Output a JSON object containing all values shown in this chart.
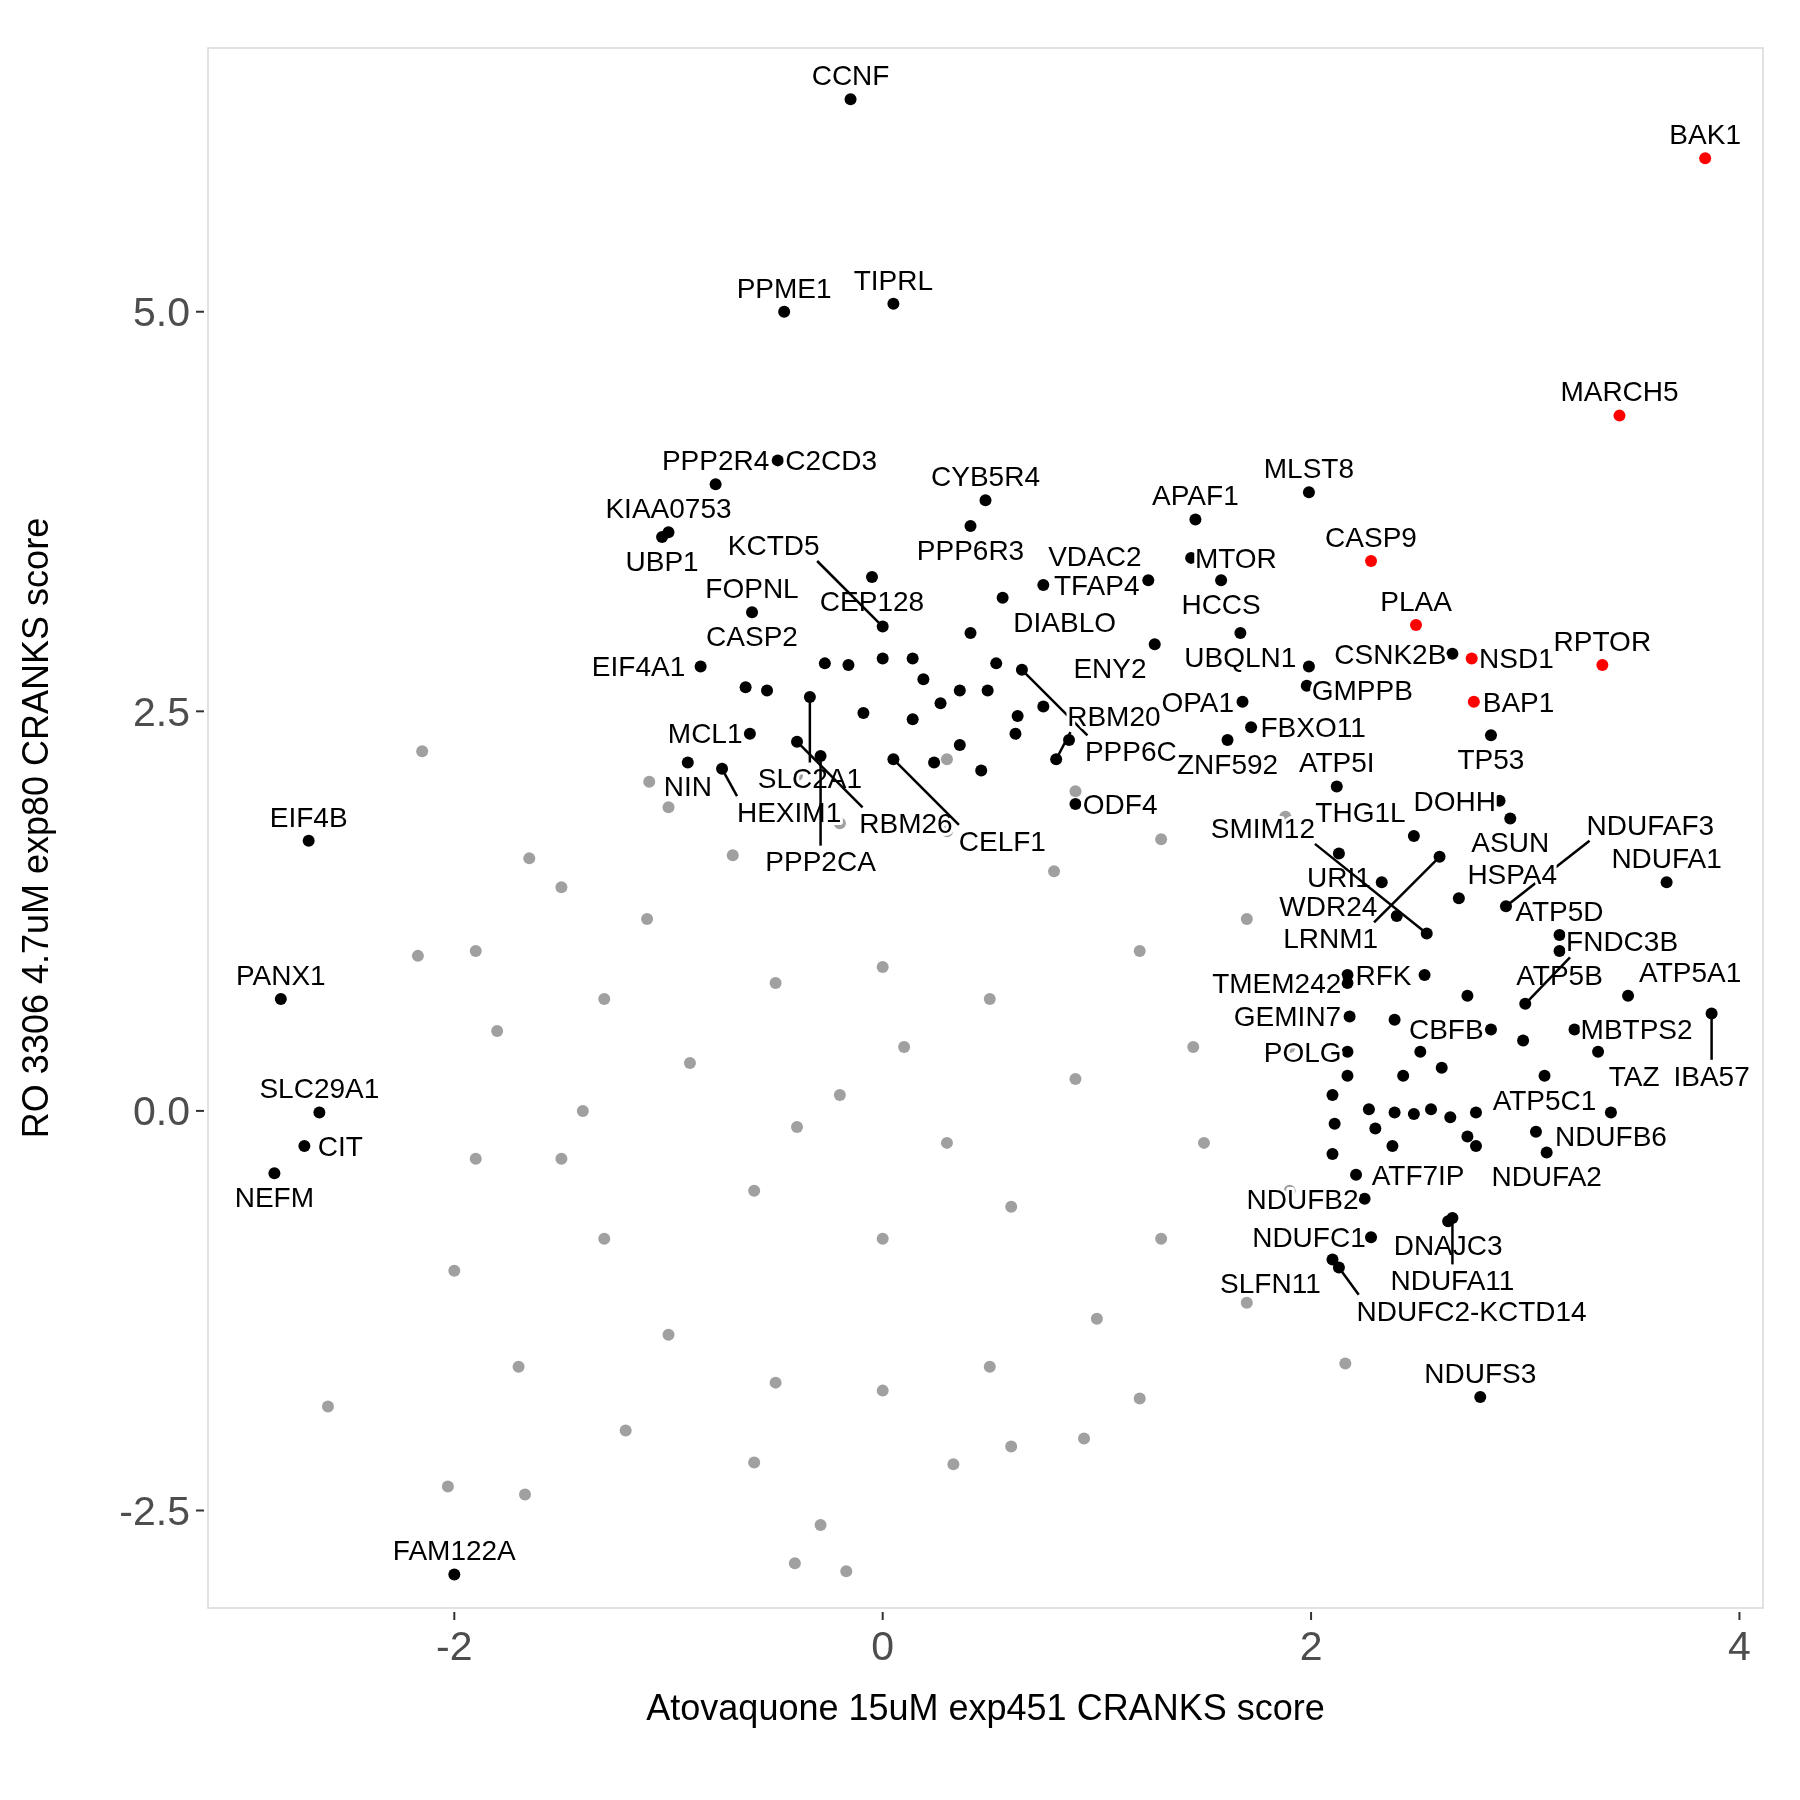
{
  "chart_data": {
    "type": "scatter",
    "xlabel": "Atovaquone 15uM exp451 CRANKS score",
    "ylabel": "RO 3306 4.7uM exp80 CRANKS score",
    "xlim": [
      -3.15,
      4.11
    ],
    "ylim": [
      -3.11,
      6.65
    ],
    "xticks": [
      {
        "value": -2,
        "label": "-2"
      },
      {
        "value": 0,
        "label": "0"
      },
      {
        "value": 2,
        "label": "2"
      },
      {
        "value": 4,
        "label": "4"
      }
    ],
    "yticks": [
      {
        "value": -2.5,
        "label": "-2.5"
      },
      {
        "value": 0,
        "label": "0.0"
      },
      {
        "value": 2.5,
        "label": "2.5"
      },
      {
        "value": 5,
        "label": "5.0"
      }
    ],
    "grid": false,
    "marker": "circle",
    "series": [
      {
        "color": "#a0a0a0",
        "x": [
          -1.4,
          -1.3,
          -1.1,
          -0.7,
          -0.2,
          0.3,
          0.8,
          1.2,
          1.45,
          1.5,
          1.3,
          1.0,
          0.5,
          0,
          -0.5,
          -1.0,
          -1.3,
          -1.5,
          -0.9,
          -0.5,
          0,
          0.5,
          0.9,
          0.6,
          0,
          -0.6,
          -0.2,
          0.3,
          0.1,
          -0.4,
          -1.8,
          -1.9,
          -2.0,
          -1.7,
          -1.2,
          -0.6,
          0.6,
          1.2,
          1.7,
          1.9,
          1.9,
          1.7,
          1.3,
          0.9,
          0.3,
          -0.4,
          -1.0,
          -1.5,
          -1.9,
          -2.15,
          -1.65,
          -2.17,
          -2.59,
          -2.03,
          -1.67,
          -0.29,
          -0.41,
          -0.17,
          0.33,
          0.94,
          2.16,
          1.88,
          -1.09
        ],
        "values": [
          0,
          0.7,
          1.2,
          1.6,
          1.8,
          1.75,
          1.5,
          1.0,
          0.4,
          -0.2,
          -0.8,
          -1.3,
          -1.6,
          -1.75,
          -1.7,
          -1.4,
          -0.8,
          -0.3,
          0.3,
          0.8,
          0.9,
          0.7,
          0.2,
          -0.6,
          -0.8,
          -0.5,
          0.1,
          -0.2,
          0.4,
          -0.1,
          0.5,
          -0.3,
          -1.0,
          -1.6,
          -2.0,
          -2.2,
          -2.1,
          -1.8,
          -1.2,
          -0.5,
          0.4,
          1.2,
          1.7,
          2.0,
          2.2,
          2.1,
          1.9,
          1.4,
          1.0,
          2.25,
          1.58,
          0.97,
          -1.85,
          -2.35,
          -2.4,
          -2.59,
          -2.83,
          -2.88,
          -2.21,
          -2.05,
          -1.58,
          1.84,
          2.06
        ]
      },
      {
        "color": "#000000",
        "x": [
          -0.15,
          0.05,
          -0.46,
          -0.78,
          -0.49,
          0.48,
          -1.03,
          -1.0,
          1.46,
          1.44,
          1.99,
          1.58,
          0.41,
          -0.05,
          0.75,
          -0.61,
          0.56,
          1.24,
          1.67,
          2.66,
          1.99,
          1.27,
          0,
          -0.85,
          0.65,
          1.68,
          1.72,
          -0.34,
          -0.62,
          2.84,
          1.61,
          0.81,
          -0.91,
          -0.75,
          -0.4,
          -0.29,
          0.05,
          2.12,
          2.88,
          2.93,
          3.16,
          3.66,
          0.9,
          2.48,
          2.6,
          2.13,
          2.91,
          2.69,
          2.33,
          3.16,
          2.54,
          2.17,
          2.17,
          3.48,
          3.0,
          2.84,
          2.18,
          2.17,
          3.23,
          3.87,
          3.09,
          3.34,
          3.4,
          3.1,
          2.21,
          2.25,
          2.64,
          2.66,
          2.28,
          2.1,
          2.13,
          2.79,
          -2.68,
          -2.81,
          -2.63,
          -2.7,
          -2.84,
          -2.0,
          2.39,
          2.51,
          2.43,
          2.61,
          2.1,
          2.27,
          2.39,
          2.56,
          2.65,
          2.77,
          2.11,
          2.3,
          2.38,
          2.48,
          2.73,
          2.77,
          3.05,
          2.99,
          2.73,
          2.53,
          2.4,
          2.17,
          2.1,
          -0.27,
          -0.16,
          0.14,
          0.19,
          0,
          -0.09,
          0.36,
          0.27,
          0.14,
          0.24,
          0.46,
          0.36,
          0.49,
          0.63,
          0.62,
          0.75,
          0.87,
          -0.54,
          -0.64,
          0.53,
          0.41,
          1.98
        ],
        "values": [
          6.33,
          5.05,
          5.0,
          3.92,
          4.07,
          3.82,
          3.59,
          3.62,
          3.7,
          3.46,
          3.87,
          3.32,
          3.66,
          3.34,
          3.29,
          3.12,
          3.21,
          3.32,
          2.99,
          2.86,
          2.78,
          2.92,
          3.03,
          2.78,
          2.76,
          2.56,
          2.4,
          2.59,
          2.36,
          2.35,
          2.32,
          2.2,
          2.18,
          2.14,
          2.31,
          2.22,
          2.2,
          2.03,
          1.94,
          1.83,
          1.1,
          1.43,
          1.92,
          1.72,
          1.59,
          1.61,
          1.28,
          1.33,
          1.43,
          1.0,
          1.11,
          0.85,
          0.8,
          0.72,
          0.67,
          0.51,
          0.59,
          0.37,
          0.51,
          0.61,
          0.22,
          0.37,
          -0.01,
          -0.26,
          -0.4,
          -0.55,
          -0.69,
          -0.67,
          -0.79,
          -0.93,
          -0.98,
          -1.79,
          1.69,
          0.7,
          -0.01,
          -0.22,
          -0.39,
          -2.9,
          0.57,
          0.37,
          0.22,
          0.27,
          0.1,
          0.01,
          -0.01,
          0.01,
          -0.04,
          -0.01,
          -0.08,
          -0.11,
          -0.22,
          -0.02,
          -0.16,
          -0.22,
          -0.13,
          0.44,
          0.72,
          0.85,
          1.22,
          0.22,
          -0.27,
          2.8,
          2.79,
          2.83,
          2.7,
          2.83,
          2.49,
          2.63,
          2.55,
          2.45,
          2.18,
          2.13,
          2.29,
          2.63,
          2.47,
          2.36,
          2.53,
          2.32,
          2.63,
          2.65,
          2.8,
          2.99,
          2.66
        ]
      },
      {
        "color": "#ff0000",
        "x": [
          3.84,
          3.44,
          2.28,
          2.49,
          2.75,
          3.36,
          2.76
        ],
        "values": [
          5.96,
          4.35,
          3.44,
          3.04,
          2.83,
          2.79,
          2.56
        ]
      }
    ],
    "annotations": [
      {
        "text": "BAK1",
        "x": 3.84,
        "y": 5.96
      },
      {
        "text": "MARCH5",
        "x": 3.44,
        "y": 4.35
      },
      {
        "text": "CASP9",
        "x": 2.28,
        "y": 3.44
      },
      {
        "text": "PLAA",
        "x": 2.49,
        "y": 3.04
      },
      {
        "text": "NSD1",
        "x": 2.75,
        "y": 2.83
      },
      {
        "text": "RPTOR",
        "x": 3.36,
        "y": 2.79
      },
      {
        "text": "BAP1",
        "x": 2.76,
        "y": 2.56
      },
      {
        "text": "CCNF",
        "x": -0.15,
        "y": 6.33
      },
      {
        "text": "TIPRL",
        "x": 0.05,
        "y": 5.05
      },
      {
        "text": "PPME1",
        "x": -0.46,
        "y": 5.0
      },
      {
        "text": "PPP2R4",
        "x": -0.78,
        "y": 3.92
      },
      {
        "text": "C2CD3",
        "x": -0.49,
        "y": 4.07
      },
      {
        "text": "CYB5R4",
        "x": 0.48,
        "y": 3.82
      },
      {
        "text": "UBP1",
        "x": -1.03,
        "y": 3.59
      },
      {
        "text": "KIAA0753",
        "x": -1.0,
        "y": 3.62
      },
      {
        "text": "APAF1",
        "x": 1.46,
        "y": 3.7
      },
      {
        "text": "MTOR",
        "x": 1.44,
        "y": 3.46
      },
      {
        "text": "MLST8",
        "x": 1.99,
        "y": 3.87
      },
      {
        "text": "HCCS",
        "x": 1.58,
        "y": 3.32
      },
      {
        "text": "PPP6R3",
        "x": 0.41,
        "y": 3.66
      },
      {
        "text": "CEP128",
        "x": -0.05,
        "y": 3.34
      },
      {
        "text": "TFAP4",
        "x": 0.75,
        "y": 3.29
      },
      {
        "text": "FOPNL",
        "x": -0.61,
        "y": 3.12
      },
      {
        "text": "CASP2",
        "x": -0.61,
        "y": 3.12
      },
      {
        "text": "DIABLO",
        "x": 0.56,
        "y": 3.21
      },
      {
        "text": "VDAC2",
        "x": 1.24,
        "y": 3.32
      },
      {
        "text": "UBQLN1",
        "x": 1.67,
        "y": 2.99
      },
      {
        "text": "CSNK2B",
        "x": 2.66,
        "y": 2.86
      },
      {
        "text": "GMPPB",
        "x": 1.99,
        "y": 2.78
      },
      {
        "text": "ENY2",
        "x": 1.27,
        "y": 2.92
      },
      {
        "text": "KCTD5",
        "x": 0,
        "y": 3.03
      },
      {
        "text": "EIF4A1",
        "x": -0.85,
        "y": 2.78
      },
      {
        "text": "PPP6C",
        "x": 0.65,
        "y": 2.76
      },
      {
        "text": "OPA1",
        "x": 1.68,
        "y": 2.56
      },
      {
        "text": "FBXO11",
        "x": 1.72,
        "y": 2.4
      },
      {
        "text": "SLC2A1",
        "x": -0.34,
        "y": 2.59
      },
      {
        "text": "MCL1",
        "x": -0.62,
        "y": 2.36
      },
      {
        "text": "TP53",
        "x": 2.84,
        "y": 2.35
      },
      {
        "text": "ZNF592",
        "x": 1.61,
        "y": 2.32
      },
      {
        "text": "RBM20",
        "x": 0.81,
        "y": 2.2
      },
      {
        "text": "NIN",
        "x": -0.91,
        "y": 2.18
      },
      {
        "text": "HEXIM1",
        "x": -0.75,
        "y": 2.14
      },
      {
        "text": "RBM26",
        "x": -0.4,
        "y": 2.31
      },
      {
        "text": "PPP2CA",
        "x": -0.29,
        "y": 2.22
      },
      {
        "text": "CELF1",
        "x": 0.05,
        "y": 2.2
      },
      {
        "text": "ATP5I",
        "x": 2.12,
        "y": 2.03
      },
      {
        "text": "DOHH",
        "x": 2.88,
        "y": 1.94
      },
      {
        "text": "ASUN",
        "x": 2.93,
        "y": 1.83
      },
      {
        "text": "ATP5D",
        "x": 3.16,
        "y": 1.1
      },
      {
        "text": "NDUFA1",
        "x": 3.66,
        "y": 1.43
      },
      {
        "text": "ODF4",
        "x": 0.9,
        "y": 1.92
      },
      {
        "text": "THG1L",
        "x": 2.48,
        "y": 1.72
      },
      {
        "text": "LRNM1",
        "x": 2.6,
        "y": 1.59
      },
      {
        "text": "URI1",
        "x": 2.13,
        "y": 1.61
      },
      {
        "text": "NDUFAF3",
        "x": 2.91,
        "y": 1.28
      },
      {
        "text": "HSPA4",
        "x": 2.69,
        "y": 1.33
      },
      {
        "text": "WDR24",
        "x": 2.33,
        "y": 1.43
      },
      {
        "text": "ATP5B",
        "x": 3.16,
        "y": 1.0
      },
      {
        "text": "SMIM12",
        "x": 2.54,
        "y": 1.11
      },
      {
        "text": "RFK",
        "x": 2.17,
        "y": 0.85
      },
      {
        "text": "TMEM242",
        "x": 2.17,
        "y": 0.8
      },
      {
        "text": "ATP5A1",
        "x": 3.48,
        "y": 0.72
      },
      {
        "text": "FNDC3B",
        "x": 3.0,
        "y": 0.67
      },
      {
        "text": "CBFB",
        "x": 2.84,
        "y": 0.51
      },
      {
        "text": "GEMIN7",
        "x": 2.18,
        "y": 0.59
      },
      {
        "text": "POLG",
        "x": 2.17,
        "y": 0.37
      },
      {
        "text": "MBTPS2",
        "x": 3.23,
        "y": 0.51
      },
      {
        "text": "IBA57",
        "x": 3.87,
        "y": 0.61
      },
      {
        "text": "ATP5C1",
        "x": 3.09,
        "y": 0.22
      },
      {
        "text": "TAZ",
        "x": 3.34,
        "y": 0.37
      },
      {
        "text": "NDUFB6",
        "x": 3.4,
        "y": -0.01
      },
      {
        "text": "NDUFA2",
        "x": 3.1,
        "y": -0.26
      },
      {
        "text": "ATF7IP",
        "x": 2.21,
        "y": -0.4
      },
      {
        "text": "NDUFB2",
        "x": 2.25,
        "y": -0.55
      },
      {
        "text": "DNAJC3",
        "x": 2.64,
        "y": -0.69
      },
      {
        "text": "NDUFA11",
        "x": 2.66,
        "y": -0.67
      },
      {
        "text": "NDUFC1",
        "x": 2.28,
        "y": -0.79
      },
      {
        "text": "SLFN11",
        "x": 2.1,
        "y": -0.93
      },
      {
        "text": "NDUFC2-KCTD14",
        "x": 2.13,
        "y": -0.98
      },
      {
        "text": "NDUFS3",
        "x": 2.79,
        "y": -1.79
      },
      {
        "text": "EIF4B",
        "x": -2.68,
        "y": 1.69
      },
      {
        "text": "PANX1",
        "x": -2.81,
        "y": 0.7
      },
      {
        "text": "SLC29A1",
        "x": -2.63,
        "y": -0.01
      },
      {
        "text": "CIT",
        "x": -2.7,
        "y": -0.22
      },
      {
        "text": "NEFM",
        "x": -2.84,
        "y": -0.39
      },
      {
        "text": "FAM122A",
        "x": -2.0,
        "y": -2.9
      }
    ]
  }
}
